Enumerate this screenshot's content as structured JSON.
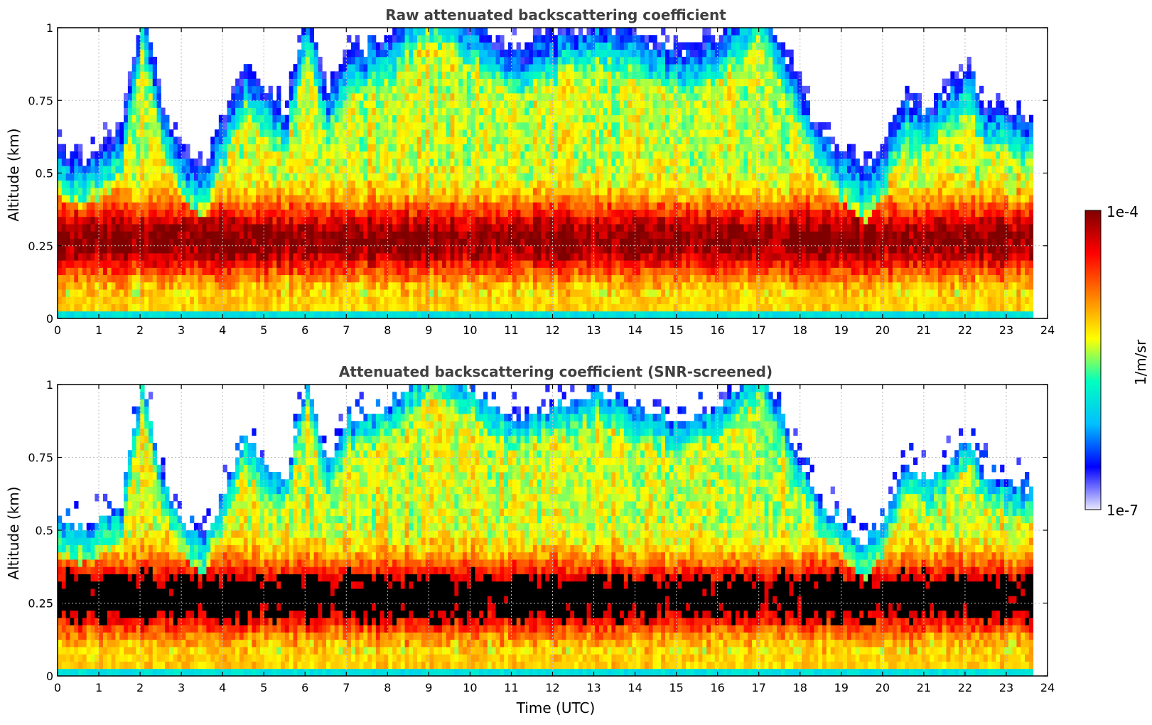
{
  "chart_data": [
    {
      "type": "heatmap",
      "title": "Raw attenuated backscattering coefficient",
      "xlabel": "",
      "ylabel": "Altitude (km)",
      "xlim": [
        0,
        24
      ],
      "ylim": [
        0,
        1
      ],
      "x_ticks": [
        "0",
        "1",
        "2",
        "3",
        "4",
        "5",
        "6",
        "7",
        "8",
        "9",
        "10",
        "11",
        "12",
        "13",
        "14",
        "15",
        "16",
        "17",
        "18",
        "19",
        "20",
        "21",
        "22",
        "23",
        "24"
      ],
      "y_ticks": [
        "0",
        "0.25",
        "0.5",
        "0.75",
        "1"
      ],
      "data_end_time": 23.65,
      "screened": false,
      "grid": true,
      "boundary_layer_top_km": [
        {
          "t": 0.0,
          "top": 0.42
        },
        {
          "t": 0.5,
          "top": 0.38
        },
        {
          "t": 1.0,
          "top": 0.42
        },
        {
          "t": 1.5,
          "top": 0.45
        },
        {
          "t": 2.0,
          "top": 0.9
        },
        {
          "t": 2.5,
          "top": 0.55
        },
        {
          "t": 3.0,
          "top": 0.4
        },
        {
          "t": 3.5,
          "top": 0.35
        },
        {
          "t": 4.0,
          "top": 0.5
        },
        {
          "t": 4.5,
          "top": 0.7
        },
        {
          "t": 5.0,
          "top": 0.6
        },
        {
          "t": 5.5,
          "top": 0.55
        },
        {
          "t": 6.0,
          "top": 0.9
        },
        {
          "t": 6.5,
          "top": 0.6
        },
        {
          "t": 7.0,
          "top": 0.75
        },
        {
          "t": 8.0,
          "top": 0.8
        },
        {
          "t": 9.0,
          "top": 0.95
        },
        {
          "t": 10.0,
          "top": 0.85
        },
        {
          "t": 11.0,
          "top": 0.75
        },
        {
          "t": 12.0,
          "top": 0.8
        },
        {
          "t": 13.0,
          "top": 0.85
        },
        {
          "t": 14.0,
          "top": 0.8
        },
        {
          "t": 15.0,
          "top": 0.75
        },
        {
          "t": 16.0,
          "top": 0.8
        },
        {
          "t": 17.0,
          "top": 0.95
        },
        {
          "t": 18.0,
          "top": 0.6
        },
        {
          "t": 18.5,
          "top": 0.45
        },
        {
          "t": 19.0,
          "top": 0.4
        },
        {
          "t": 19.5,
          "top": 0.33
        },
        {
          "t": 20.0,
          "top": 0.42
        },
        {
          "t": 20.5,
          "top": 0.6
        },
        {
          "t": 21.0,
          "top": 0.55
        },
        {
          "t": 21.5,
          "top": 0.6
        },
        {
          "t": 22.0,
          "top": 0.7
        },
        {
          "t": 22.5,
          "top": 0.55
        },
        {
          "t": 23.0,
          "top": 0.55
        },
        {
          "t": 23.65,
          "top": 0.5
        }
      ]
    },
    {
      "type": "heatmap",
      "title": "Attenuated backscattering coefficient (SNR-screened)",
      "xlabel": "Time (UTC)",
      "ylabel": "Altitude (km)",
      "xlim": [
        0,
        24
      ],
      "ylim": [
        0,
        1
      ],
      "x_ticks": [
        "0",
        "1",
        "2",
        "3",
        "4",
        "5",
        "6",
        "7",
        "8",
        "9",
        "10",
        "11",
        "12",
        "13",
        "14",
        "15",
        "16",
        "17",
        "18",
        "19",
        "20",
        "21",
        "22",
        "23",
        "24"
      ],
      "y_ticks": [
        "0",
        "0.25",
        "0.5",
        "0.75",
        "1"
      ],
      "data_end_time": 23.65,
      "screened": true,
      "grid": true
    }
  ],
  "colorbar": {
    "label": "1/m/sr",
    "max_label": "1e-4",
    "min_label": "1e-7",
    "colormap": [
      "#e8e8ff",
      "#0000ff",
      "#00bfff",
      "#00ffbf",
      "#ffff00",
      "#ff8000",
      "#ff0000",
      "#800000"
    ]
  },
  "colors": {
    "background": "#ffffff",
    "title": "#404040",
    "grid": "#bfbfbf",
    "axis": "#000000",
    "screened_core": "#000000"
  }
}
